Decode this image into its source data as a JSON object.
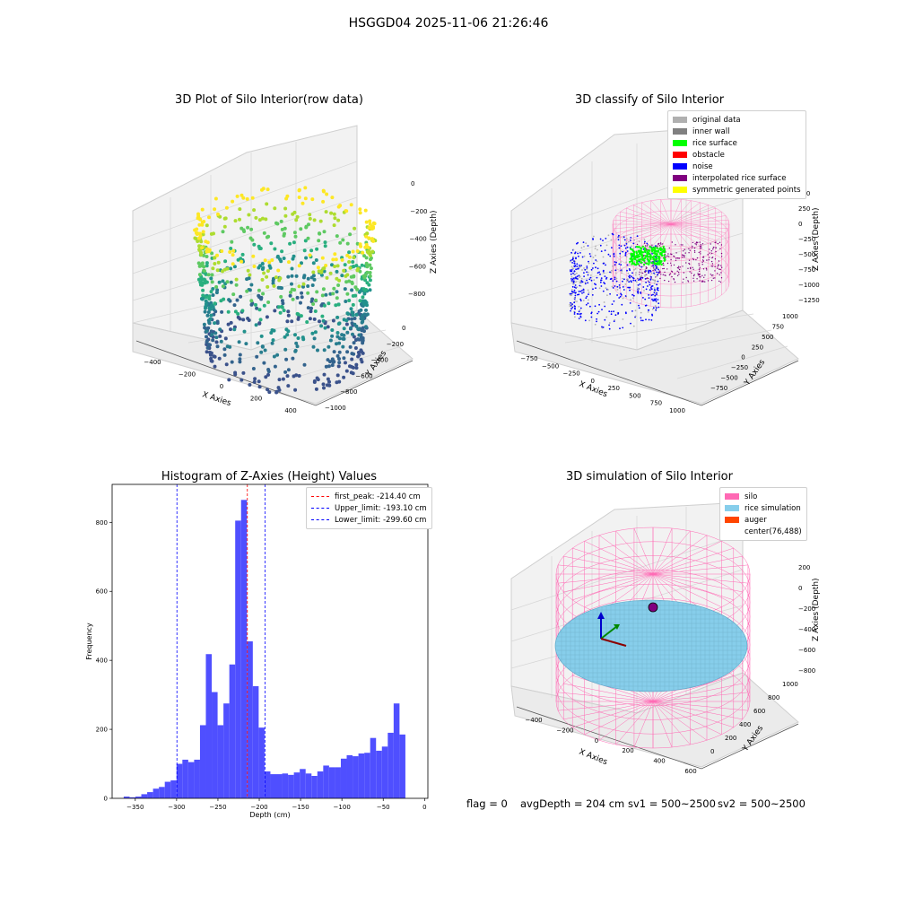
{
  "suptitle": "HSGGD04 2025-11-06 21:26:46",
  "colors": {
    "original_data": "#b0b0b0",
    "inner_wall": "#808080",
    "rice_surface": "#00ff00",
    "obstacle": "#ff0000",
    "noise": "#0000ff",
    "interpolated_rice_surface": "#800080",
    "symmetric_generated_points": "#ffff00",
    "silo": "#ff69b4",
    "rice_simulation": "#87ceeb",
    "auger": "#ff4500",
    "histogram_bar": "#4b4bff"
  },
  "panels": {
    "raw": {
      "title": "3D Plot of Silo Interior(row data)",
      "xlabel": "X Axies",
      "ylabel": "Y Axies",
      "zlabel": "Z Axies (Depth)",
      "xticks": [
        "−400",
        "−200",
        "0",
        "200",
        "400"
      ],
      "yticks": [
        "−1000",
        "−800",
        "−600",
        "−400",
        "−200",
        "0"
      ],
      "zticks": [
        "0",
        "−200",
        "−400",
        "−600",
        "−800"
      ]
    },
    "classify": {
      "title": "3D classify of Silo Interior",
      "xlabel": "X Axies",
      "ylabel": "Y Axies",
      "zlabel": "Z Axies (Depth)",
      "xticks": [
        "−750",
        "−500",
        "−250",
        "0",
        "250",
        "500",
        "750",
        "1000"
      ],
      "yticks": [
        "−750",
        "−500",
        "−250",
        "0",
        "250",
        "500",
        "750",
        "1000"
      ],
      "zticks": [
        "500",
        "250",
        "0",
        "−250",
        "−500",
        "−750",
        "−1000",
        "−1250"
      ],
      "legend": [
        "original data",
        "inner wall",
        "rice surface",
        "obstacle",
        "noise",
        "interpolated rice surface",
        "symmetric generated points"
      ]
    },
    "simulation": {
      "title": "3D simulation of Silo Interior",
      "xlabel": "X Axies",
      "ylabel": "Y Axies",
      "zlabel": "Z Axies (Depth)",
      "xticks": [
        "−400",
        "−200",
        "0",
        "200",
        "400",
        "600"
      ],
      "yticks": [
        "0",
        "200",
        "400",
        "600",
        "800",
        "1000"
      ],
      "zticks": [
        "200",
        "0",
        "−200",
        "−400",
        "−600",
        "−800"
      ],
      "legend": [
        "silo",
        "rice simulation",
        "auger",
        "center(76,488)"
      ]
    }
  },
  "footer": {
    "flag": "flag = 0",
    "avg": "avgDepth = 204 cm",
    "sv1": "sv1 = 500~2500",
    "sv2": "sv2 = 500~2500"
  },
  "chart_data": [
    {
      "type": "histogram",
      "title": "Histogram of Z-Axies (Height) Values",
      "xlabel": "Depth (cm)",
      "ylabel": "Frequency",
      "xlim": [
        -378,
        4
      ],
      "ylim": [
        0,
        910
      ],
      "xticks": [
        -350,
        -300,
        -250,
        -200,
        -150,
        -100,
        -50,
        0
      ],
      "xtick_labels": [
        "−350",
        "−300",
        "−250",
        "−200",
        "−150",
        "−100",
        "−50",
        "0"
      ],
      "yticks": [
        0,
        200,
        400,
        600,
        800
      ],
      "bins_start": -364,
      "bin_width": 7.1,
      "values": [
        5,
        3,
        5,
        12,
        18,
        28,
        33,
        48,
        52,
        100,
        112,
        105,
        112,
        212,
        418,
        308,
        212,
        275,
        388,
        805,
        865,
        455,
        325,
        205,
        78,
        70,
        70,
        72,
        68,
        75,
        85,
        72,
        65,
        78,
        95,
        90,
        90,
        115,
        125,
        122,
        130,
        132,
        175,
        138,
        150,
        190,
        275,
        185
      ],
      "vlines": [
        {
          "label": "first_peak: -214.40 cm",
          "x": -214.4,
          "color": "#ff0000"
        },
        {
          "label": "Upper_limit: -193.10 cm",
          "x": -193.1,
          "color": "#0000ff"
        },
        {
          "label": "Lower_limit: -299.60 cm",
          "x": -299.6,
          "color": "#0000ff"
        }
      ],
      "legend_position": "top-right"
    }
  ]
}
